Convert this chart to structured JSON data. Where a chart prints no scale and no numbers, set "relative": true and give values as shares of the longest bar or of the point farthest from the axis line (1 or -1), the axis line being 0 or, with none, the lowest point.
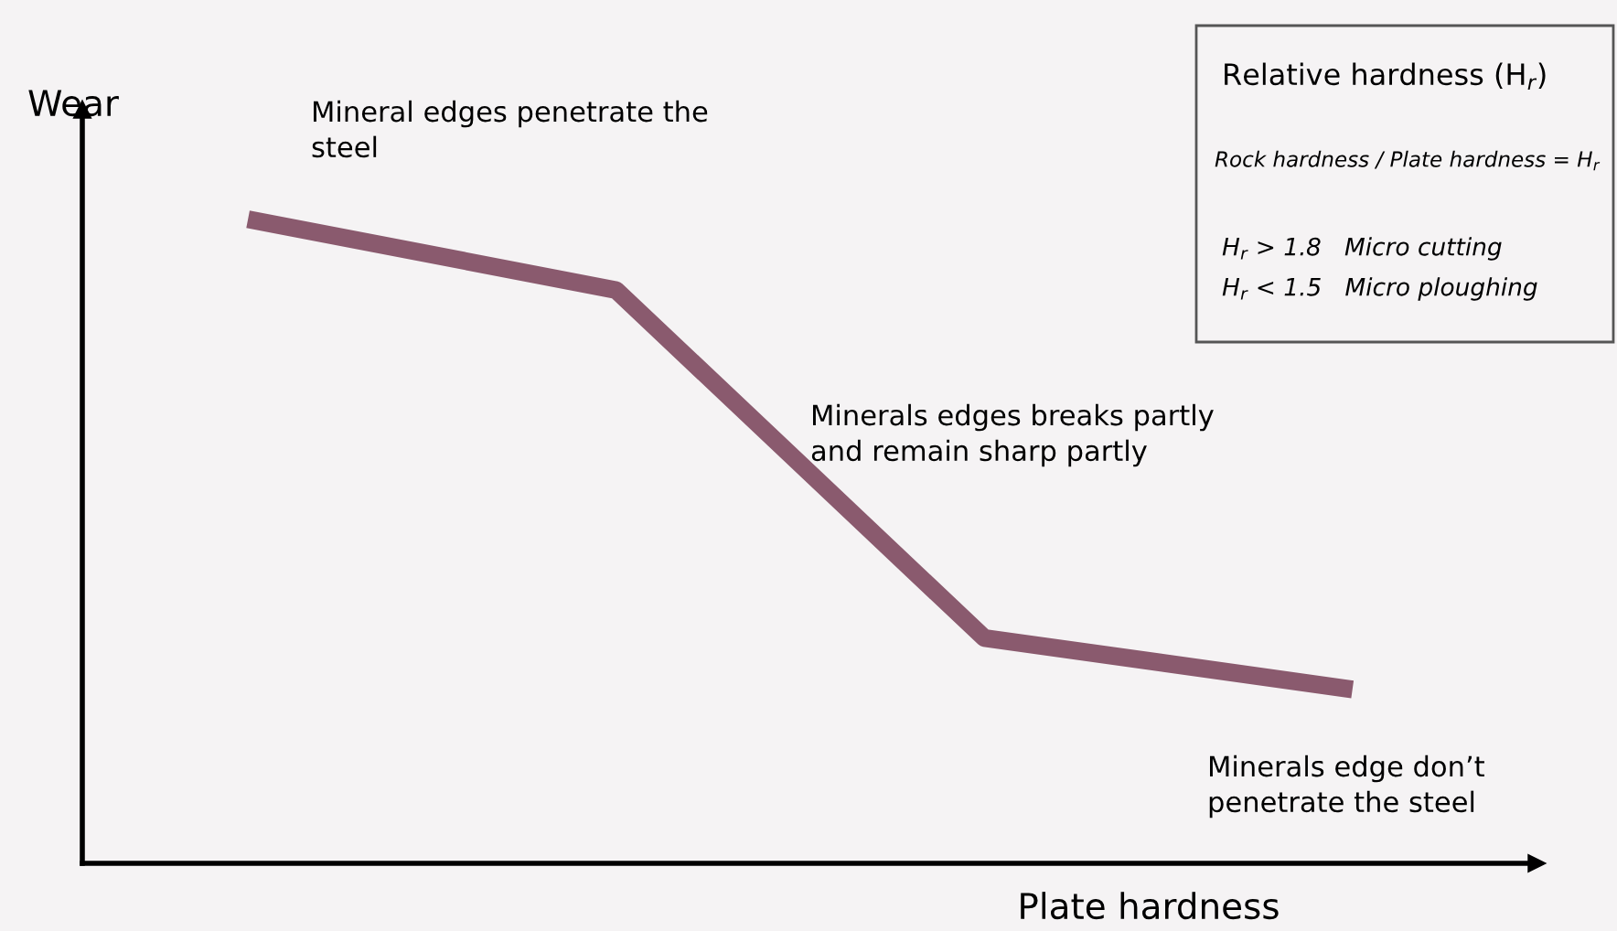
{
  "chart_data": {
    "type": "line",
    "relative": true,
    "xlabel": "Plate hardness",
    "ylabel": "Wear",
    "categories": [
      null,
      null,
      null,
      null
    ],
    "series": [
      {
        "values": [
          1,
          0.89,
          0.35,
          0.27
        ],
        "color": "#8a5a6e"
      }
    ],
    "annotations": [
      "Mineral edges penetrate the\nsteel",
      "Minerals edges breaks partly\nand remain sharp partly",
      "Minerals edge don’t\npenetrate the steel",
      "Relative hardness (H$_{r}$)",
      "Rock hardness / Plate hardness = H$_{r}$",
      "H$_{r}$ > 1.8   Micro cutting",
      "H$_{r}$ < 1.5   Micro ploughing"
    ],
    "tick_labels": false
  }
}
